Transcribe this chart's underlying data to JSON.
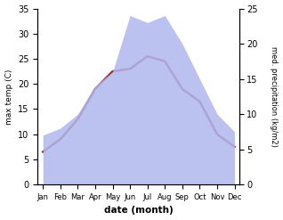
{
  "months": [
    "Jan",
    "Feb",
    "Mar",
    "Apr",
    "May",
    "Jun",
    "Jul",
    "Aug",
    "Sep",
    "Oct",
    "Nov",
    "Dec"
  ],
  "temperature": [
    6.5,
    9.0,
    13.0,
    19.0,
    22.5,
    23.0,
    25.5,
    24.5,
    19.0,
    16.5,
    10.0,
    7.5
  ],
  "precipitation": [
    7.0,
    8.0,
    10.0,
    14.0,
    16.0,
    24.0,
    23.0,
    24.0,
    20.0,
    15.0,
    10.0,
    7.5
  ],
  "temp_ylim": [
    0,
    35
  ],
  "precip_ylim": [
    0,
    25
  ],
  "temp_color": "#993333",
  "precip_fill_color": "#b0b8ee",
  "xlabel": "date (month)",
  "ylabel_left": "max temp (C)",
  "ylabel_right": "med. precipitation (kg/m2)",
  "temp_linewidth": 1.8
}
